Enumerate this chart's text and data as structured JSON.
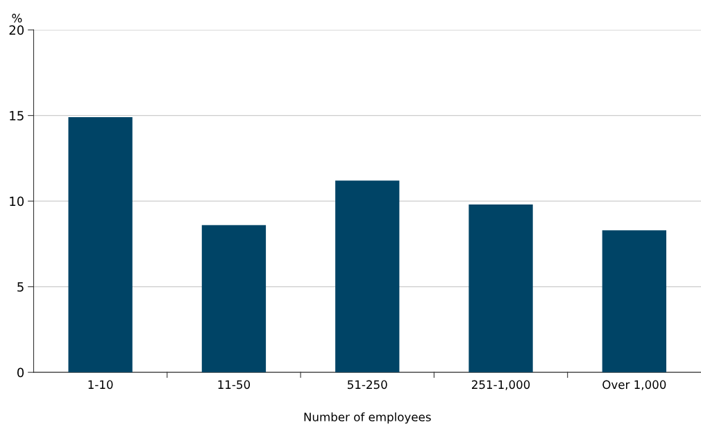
{
  "chart_data": {
    "type": "bar",
    "ylabel": "%",
    "xlabel": "Number of employees",
    "categories": [
      "1-10",
      "11-50",
      "51-250",
      "251-1,000",
      "Over 1,000"
    ],
    "values": [
      14.9,
      8.6,
      11.2,
      9.8,
      8.3
    ],
    "color": "#004466",
    "ylim": [
      0,
      20
    ],
    "yticks": [
      0,
      5,
      10,
      15,
      20
    ],
    "grid": "y",
    "legend": false
  }
}
